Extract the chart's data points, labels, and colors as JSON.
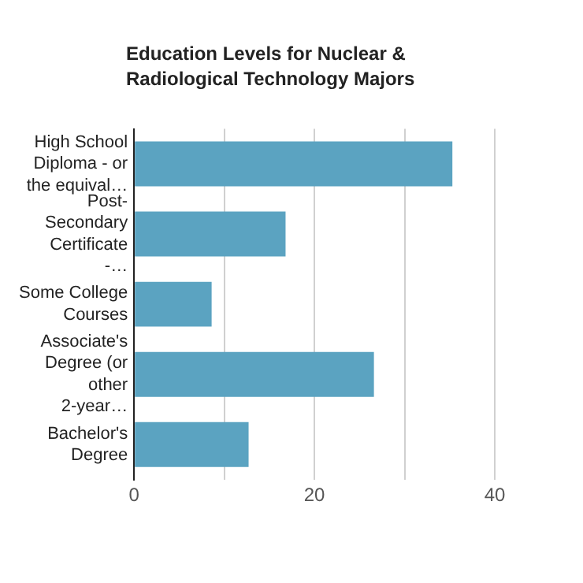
{
  "chart_data": {
    "type": "bar",
    "orientation": "horizontal",
    "title": "Education Levels for Nuclear & Radiological Technology Majors",
    "categories": [
      "High School Diploma - or the equival…",
      "Post-Secondary Certificate -…",
      "Some College Courses",
      "Associate's Degree (or other 2-year…",
      "Bachelor's Degree"
    ],
    "values": [
      35.3,
      16.8,
      8.6,
      26.6,
      12.7
    ],
    "color": "#5ba3c1",
    "xlim": [
      0,
      40
    ],
    "xticks": [
      0,
      {
        "value": 10,
        "label": null
      },
      20,
      {
        "value": 30,
        "label": null
      },
      40
    ],
    "grid": "x",
    "legend": false
  }
}
